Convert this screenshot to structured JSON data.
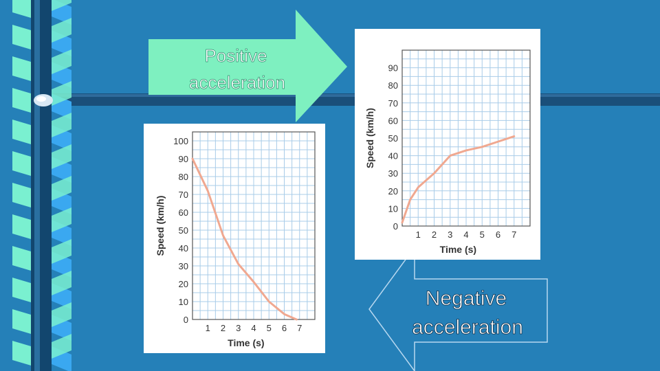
{
  "slide": {
    "colors": {
      "background": "#2580b8",
      "band": "#1a4f7a",
      "ribbon_light": "#7af0d0",
      "ribbon_blue": "#3aa8f0",
      "positive_arrow": "#7ef0c0",
      "negative_arrow": "#2580b8",
      "curve": "#f0a890",
      "grid": "#a8cce8"
    },
    "positive_label": [
      "Positive",
      "acceleration"
    ],
    "negative_label": [
      "Negative",
      "acceleration"
    ]
  },
  "chart_data": [
    {
      "type": "line",
      "title": "",
      "xlabel": "Time (s)",
      "ylabel": "Speed (km/h)",
      "x": [
        0,
        0.5,
        1,
        2,
        3,
        4,
        5,
        6,
        7
      ],
      "series": [
        {
          "values": [
            2,
            15,
            22,
            30,
            40,
            43,
            45,
            48,
            51
          ]
        }
      ],
      "xticks": [
        "1",
        "2",
        "3",
        "4",
        "5",
        "6",
        "7"
      ],
      "yticks": [
        "0",
        "10",
        "20",
        "30",
        "40",
        "50",
        "60",
        "70",
        "80",
        "90"
      ],
      "xlim": [
        0,
        8
      ],
      "ylim": [
        0,
        100
      ],
      "grid": true
    },
    {
      "type": "line",
      "title": "",
      "xlabel": "Time (s)",
      "ylabel": "Speed (km/h)",
      "x": [
        0,
        1,
        2,
        3,
        4,
        5,
        6,
        6.8
      ],
      "series": [
        {
          "values": [
            90,
            72,
            47,
            31,
            21,
            10,
            3,
            0
          ]
        }
      ],
      "xticks": [
        "1",
        "2",
        "3",
        "4",
        "5",
        "6",
        "7"
      ],
      "yticks": [
        "0",
        "10",
        "20",
        "30",
        "40",
        "50",
        "60",
        "70",
        "80",
        "90",
        "100"
      ],
      "xlim": [
        0,
        8
      ],
      "ylim": [
        0,
        105
      ],
      "grid": true
    }
  ]
}
